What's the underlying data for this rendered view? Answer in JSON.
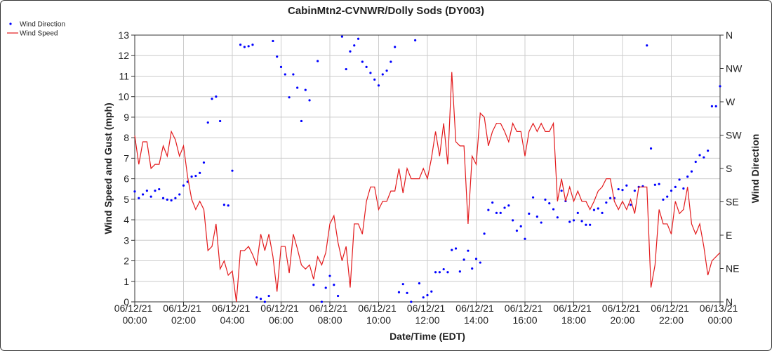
{
  "chart_data": {
    "type": "line",
    "title": "CabinMtn2-CVNWR/Dolly Sods (DY003)",
    "x_label": "Date/Time (EDT)",
    "y_label": "Wind Speed and Gust (mph)",
    "y2_label": "Wind Direction",
    "legend": "upper-left",
    "grid": true,
    "xlim": [
      0,
      1440
    ],
    "xticks": [
      {
        "value": 0,
        "label": "06/12/21 00:00"
      },
      {
        "value": 120,
        "label": "06/12/21 02:00"
      },
      {
        "value": 240,
        "label": "06/12/21 04:00"
      },
      {
        "value": 360,
        "label": "06/12/21 06:00"
      },
      {
        "value": 480,
        "label": "06/12/21 08:00"
      },
      {
        "value": 600,
        "label": "06/12/21 10:00"
      },
      {
        "value": 720,
        "label": "06/12/21 12:00"
      },
      {
        "value": 840,
        "label": "06/12/21 14:00"
      },
      {
        "value": 960,
        "label": "06/12/21 16:00"
      },
      {
        "value": 1080,
        "label": "06/12/21 18:00"
      },
      {
        "value": 1200,
        "label": "06/12/21 20:00"
      },
      {
        "value": 1320,
        "label": "06/12/21 22:00"
      },
      {
        "value": 1440,
        "label": "06/13/21 00:00"
      }
    ],
    "ylim": [
      0,
      13
    ],
    "yticks": [
      0,
      1,
      2,
      3,
      4,
      5,
      6,
      7,
      8,
      9,
      10,
      11,
      12,
      13
    ],
    "y2lim": [
      0,
      360
    ],
    "y2ticks": [
      {
        "value": 0,
        "label": "N"
      },
      {
        "value": 45,
        "label": "NE"
      },
      {
        "value": 90,
        "label": "E"
      },
      {
        "value": 135,
        "label": "SE"
      },
      {
        "value": 180,
        "label": "S"
      },
      {
        "value": 225,
        "label": "SW"
      },
      {
        "value": 270,
        "label": "W"
      },
      {
        "value": 315,
        "label": "NW"
      },
      {
        "value": 360,
        "label": "N"
      }
    ],
    "x": [
      0,
      10,
      20,
      30,
      40,
      50,
      60,
      70,
      80,
      90,
      100,
      110,
      120,
      130,
      140,
      150,
      160,
      170,
      180,
      190,
      200,
      210,
      220,
      230,
      240,
      250,
      260,
      270,
      280,
      290,
      300,
      310,
      320,
      330,
      340,
      350,
      360,
      370,
      380,
      390,
      400,
      410,
      420,
      430,
      440,
      450,
      460,
      470,
      480,
      490,
      500,
      510,
      520,
      530,
      540,
      550,
      560,
      570,
      580,
      590,
      600,
      610,
      620,
      630,
      640,
      650,
      660,
      670,
      680,
      690,
      700,
      710,
      720,
      730,
      740,
      750,
      760,
      770,
      780,
      790,
      800,
      810,
      820,
      830,
      840,
      850,
      860,
      870,
      880,
      890,
      900,
      910,
      920,
      930,
      940,
      950,
      960,
      970,
      980,
      990,
      1000,
      1010,
      1020,
      1030,
      1040,
      1050,
      1060,
      1070,
      1080,
      1090,
      1100,
      1110,
      1120,
      1130,
      1140,
      1150,
      1160,
      1170,
      1180,
      1190,
      1200,
      1210,
      1220,
      1230,
      1240,
      1250,
      1260,
      1270,
      1280,
      1290,
      1300,
      1310,
      1320,
      1330,
      1340,
      1350,
      1360,
      1370,
      1380,
      1390,
      1400,
      1410,
      1420,
      1430,
      1440
    ],
    "series": [
      {
        "name": "Wind Direction",
        "type": "scatter",
        "axis": "y2",
        "color": "#0000ff",
        "values": [
          149,
          140,
          145,
          150,
          142,
          150,
          152,
          140,
          138,
          137,
          140,
          145,
          157,
          162,
          169,
          170,
          174,
          188,
          242,
          274,
          277,
          244,
          131,
          130,
          177,
          null,
          347,
          344,
          345,
          347,
          6,
          4,
          0,
          8,
          352,
          331,
          317,
          307,
          276,
          307,
          289,
          244,
          286,
          272,
          23,
          325,
          0,
          19,
          35,
          23,
          8,
          358,
          314,
          338,
          346,
          355,
          324,
          317,
          309,
          300,
          292,
          307,
          312,
          324,
          344,
          13,
          24,
          12,
          0,
          353,
          25,
          6,
          9,
          14,
          40,
          40,
          44,
          40,
          70,
          72,
          41,
          57,
          69,
          45,
          58,
          53,
          92,
          124,
          134,
          120,
          120,
          127,
          130,
          110,
          96,
          102,
          85,
          119,
          141,
          115,
          107,
          138,
          133,
          125,
          114,
          150,
          136,
          108,
          110,
          120,
          109,
          104,
          104,
          124,
          126,
          120,
          134,
          140,
          140,
          152,
          151,
          157,
          131,
          150,
          155,
          156,
          346,
          207,
          158,
          159,
          138,
          142,
          150,
          155,
          165,
          153,
          169,
          176,
          189,
          198,
          195,
          204,
          264,
          264,
          291
        ]
      },
      {
        "name": "Wind Speed",
        "type": "line",
        "color": "#e31a1c",
        "values": [
          8.1,
          6.7,
          7.8,
          7.8,
          6.5,
          6.7,
          6.7,
          7.6,
          7.1,
          8.3,
          7.9,
          7.1,
          7.6,
          6.1,
          5.0,
          4.5,
          4.9,
          4.5,
          2.5,
          2.7,
          3.8,
          1.6,
          2.0,
          1.3,
          1.5,
          0.0,
          2.5,
          2.5,
          2.7,
          2.3,
          1.8,
          3.3,
          2.5,
          3.3,
          2.2,
          0.5,
          2.7,
          2.7,
          1.4,
          3.3,
          2.6,
          1.8,
          1.6,
          1.8,
          1.1,
          2.2,
          1.8,
          2.4,
          3.8,
          4.2,
          2.9,
          2.0,
          2.7,
          0.7,
          3.8,
          3.8,
          3.3,
          4.9,
          5.6,
          5.6,
          4.5,
          4.9,
          4.9,
          5.4,
          5.4,
          6.5,
          5.3,
          6.5,
          6.0,
          6.0,
          6.0,
          6.5,
          6.0,
          7.0,
          8.3,
          7.1,
          8.7,
          6.7,
          11.2,
          7.8,
          7.6,
          7.6,
          3.8,
          7.1,
          6.7,
          9.2,
          9.0,
          7.6,
          8.3,
          8.7,
          8.7,
          8.3,
          7.8,
          8.7,
          8.3,
          8.3,
          7.1,
          8.3,
          8.7,
          8.3,
          8.7,
          8.3,
          8.3,
          8.7,
          4.9,
          6.0,
          4.9,
          5.6,
          4.9,
          5.4,
          4.9,
          4.9,
          4.5,
          4.9,
          5.4,
          5.6,
          6.0,
          6.0,
          4.9,
          4.5,
          4.9,
          4.5,
          5.0,
          4.3,
          5.6,
          5.6,
          5.6,
          0.7,
          1.8,
          4.5,
          3.8,
          3.8,
          3.3,
          4.9,
          4.3,
          4.5,
          5.6,
          3.8,
          3.3,
          3.8,
          2.7,
          1.3,
          2.0,
          2.2,
          2.4
        ]
      }
    ]
  }
}
